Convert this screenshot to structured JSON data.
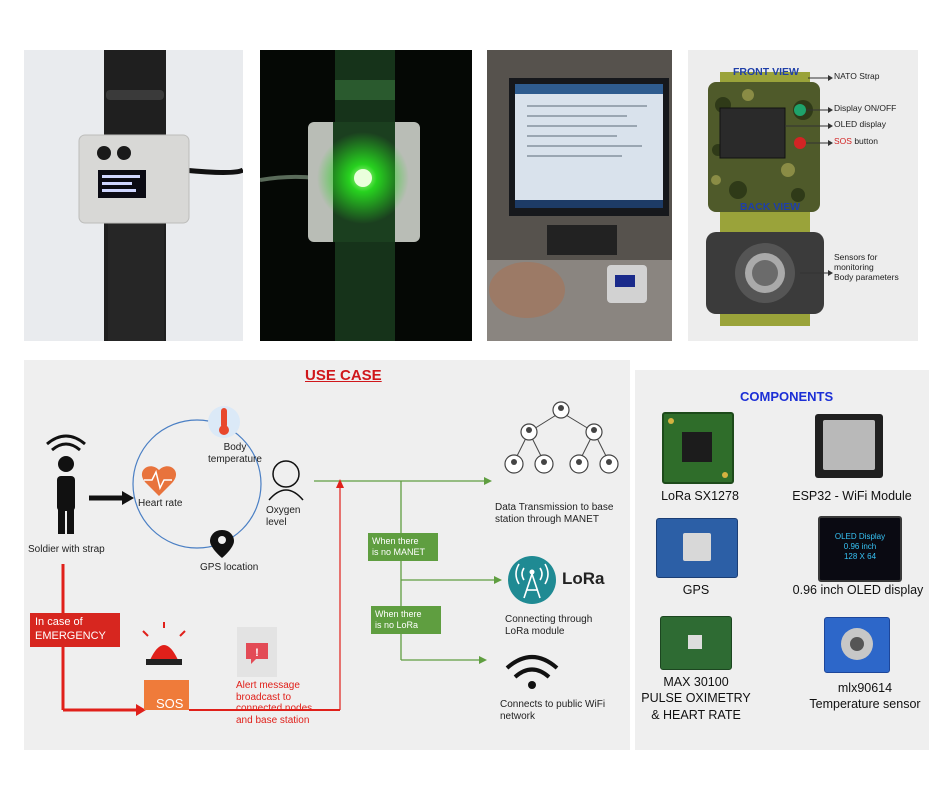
{
  "front_view_title": "FRONT VIEW",
  "back_view_title": "BACK VIEW",
  "front_labels": {
    "nato": "NATO Strap",
    "display_onoff": "Display ON/OFF",
    "oled": "OLED display",
    "sos_word": "SOS",
    "sos_rest": " button"
  },
  "back_labels": {
    "sensors_l1": "Sensors for",
    "sensors_l2": "monitoring",
    "sensors_l3": "Body parameters"
  },
  "use_case": {
    "title": "USE CASE",
    "body_temp": "Body\ntemperature",
    "heart_rate": "Heart rate",
    "oxygen": "Oxygen\nlevel",
    "gps": "GPS location",
    "soldier": "Soldier with strap",
    "data_tx": "Data Transmission to base\nstation through MANET",
    "no_manet": "When there\nis no MANET",
    "no_lora": "When there\nis no LoRa",
    "lora_logo": "LoRa",
    "lora_conn": "Connecting through\nLoRa module",
    "wifi_conn": "Connects to public WiFi\nnetwork",
    "emergency": "In case of\nEMERGENCY",
    "sos": "SOS",
    "alert": "Alert message\nbroadcast to\nconnected nodes\nand base station"
  },
  "components": {
    "title": "COMPONENTS",
    "lora": "LoRa SX1278",
    "esp32": "ESP32 - WiFi Module",
    "gps": "GPS",
    "oled": "0.96 inch OLED display",
    "oled_screen_l1": "OLED Display",
    "oled_screen_l2": "0.96 inch",
    "oled_screen_l3": "128 X 64",
    "max_l1": "MAX 30100",
    "max_l2": "PULSE OXIMETRY",
    "max_l3": "& HEART RATE",
    "mlx": "mlx90614",
    "mlx_l2": "Temperature sensor"
  },
  "colors": {
    "title_red": "#d0171b",
    "components_blue": "#1c2fd6",
    "view_blue": "#1f3fa8",
    "flow_green": "#5f9e40",
    "emergency_red": "#d7261f",
    "sos_orange": "#ef7b3a",
    "lora_teal": "#1f8a93"
  }
}
